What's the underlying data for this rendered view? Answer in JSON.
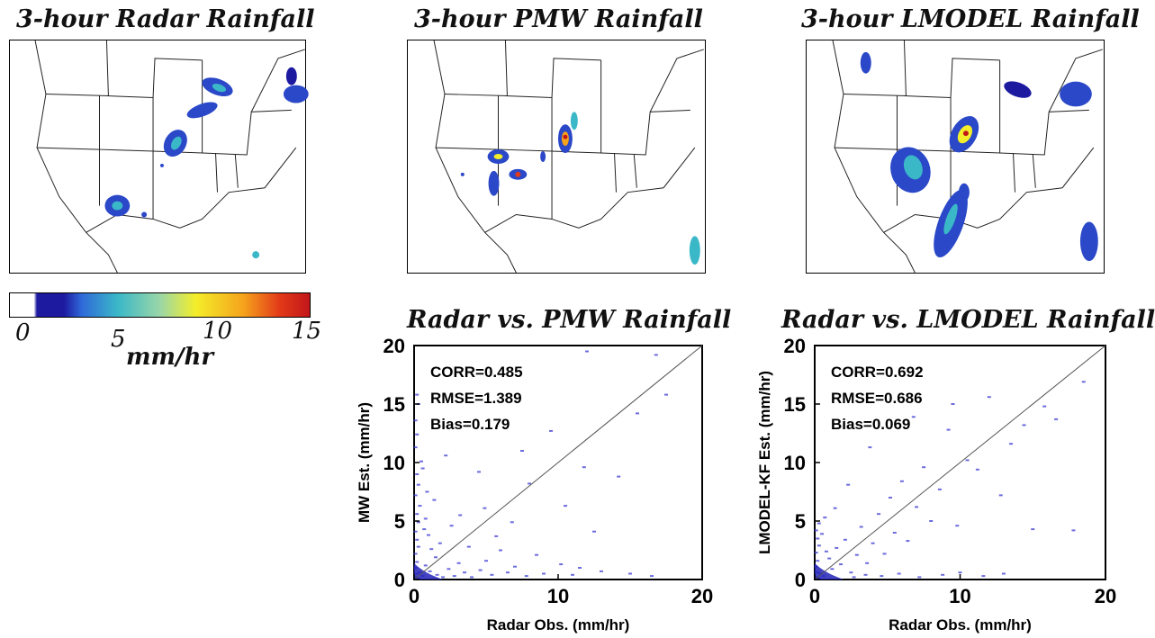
{
  "titles": {
    "radar_map": "3-hour Radar Rainfall",
    "pmw_map": "3-hour PMW Rainfall",
    "lmodel_map": "3-hour LMODEL Rainfall"
  },
  "colorbar": {
    "ticks": [
      "0",
      "5",
      "10",
      "15"
    ],
    "unit": "mm/hr",
    "colors": [
      "#ffffff",
      "#1d1aa0",
      "#2f6ad8",
      "#3bb8c8",
      "#9ad6a8",
      "#f4ee2a",
      "#f5a21c",
      "#e23a18",
      "#c2161a"
    ]
  },
  "chart_data": [
    {
      "type": "scatter",
      "title": "Radar vs. PMW Rainfall",
      "xlabel": "Radar Obs. (mm/hr)",
      "ylabel": "MW Est. (mm/hr)",
      "xlim": [
        0,
        20
      ],
      "ylim": [
        0,
        20
      ],
      "xticks": [
        "0",
        "10",
        "20"
      ],
      "yticks": [
        "0",
        "5",
        "10",
        "15",
        "20"
      ],
      "stats": [
        "CORR=0.485",
        "RMSE=1.389",
        "Bias=0.179"
      ],
      "reference_line": "1:1",
      "point_color": "#3b3bd0",
      "points": [
        [
          0.1,
          0.2
        ],
        [
          0.2,
          0.5
        ],
        [
          0.3,
          0.1
        ],
        [
          0.1,
          1.0
        ],
        [
          0.4,
          0.6
        ],
        [
          0.2,
          1.5
        ],
        [
          0.6,
          0.3
        ],
        [
          0.1,
          2.2
        ],
        [
          0.3,
          2.8
        ],
        [
          0.2,
          3.4
        ],
        [
          0.1,
          4.1
        ],
        [
          0.3,
          4.9
        ],
        [
          0.2,
          5.6
        ],
        [
          0.4,
          6.3
        ],
        [
          0.1,
          7.2
        ],
        [
          0.3,
          8.1
        ],
        [
          0.2,
          9.0
        ],
        [
          0.5,
          10.1
        ],
        [
          0.1,
          11.3
        ],
        [
          0.2,
          12.4
        ],
        [
          0.1,
          13.6
        ],
        [
          0.3,
          15.0
        ],
        [
          0.2,
          15.8
        ],
        [
          0.9,
          7.5
        ],
        [
          0.8,
          5.2
        ],
        [
          0.7,
          4.3
        ],
        [
          1.0,
          3.8
        ],
        [
          1.2,
          2.6
        ],
        [
          1.5,
          1.9
        ],
        [
          0.8,
          1.2
        ],
        [
          1.1,
          0.7
        ],
        [
          1.6,
          0.4
        ],
        [
          2.0,
          0.2
        ],
        [
          2.4,
          0.9
        ],
        [
          2.8,
          0.3
        ],
        [
          3.1,
          1.4
        ],
        [
          3.5,
          0.6
        ],
        [
          4.0,
          0.2
        ],
        [
          4.6,
          0.8
        ],
        [
          5.0,
          1.6
        ],
        [
          5.4,
          0.4
        ],
        [
          6.0,
          2.5
        ],
        [
          6.5,
          0.6
        ],
        [
          7.0,
          1.1
        ],
        [
          7.8,
          0.3
        ],
        [
          8.5,
          2.1
        ],
        [
          9.0,
          0.5
        ],
        [
          10.2,
          1.3
        ],
        [
          11.0,
          0.4
        ],
        [
          11.5,
          1.0
        ],
        [
          13.0,
          0.7
        ],
        [
          15.0,
          0.5
        ],
        [
          16.5,
          0.3
        ],
        [
          1.8,
          3.1
        ],
        [
          2.6,
          4.6
        ],
        [
          3.2,
          5.5
        ],
        [
          4.5,
          9.2
        ],
        [
          4.9,
          6.1
        ],
        [
          5.7,
          3.7
        ],
        [
          7.5,
          11.0
        ],
        [
          8.0,
          8.2
        ],
        [
          9.5,
          12.7
        ],
        [
          11.8,
          9.6
        ],
        [
          12.5,
          4.1
        ],
        [
          14.2,
          8.8
        ],
        [
          15.5,
          14.2
        ],
        [
          16.8,
          19.2
        ],
        [
          12.0,
          19.5
        ],
        [
          17.5,
          15.8
        ],
        [
          2.2,
          10.6
        ],
        [
          1.4,
          6.8
        ],
        [
          0.6,
          9.5
        ],
        [
          3.8,
          2.8
        ],
        [
          6.8,
          4.9
        ],
        [
          10.5,
          6.3
        ]
      ]
    },
    {
      "type": "scatter",
      "title": "Radar vs. LMODEL Rainfall",
      "xlabel": "Radar Obs. (mm/hr)",
      "ylabel": "LMODEL-KF Est. (mm/hr)",
      "xlim": [
        0,
        20
      ],
      "ylim": [
        0,
        20
      ],
      "xticks": [
        "0",
        "10",
        "20"
      ],
      "yticks": [
        "0",
        "5",
        "10",
        "15",
        "20"
      ],
      "stats": [
        "CORR=0.692",
        "RMSE=0.686",
        "Bias=0.069"
      ],
      "reference_line": "1:1",
      "point_color": "#3b3bd0",
      "points": [
        [
          0.1,
          0.2
        ],
        [
          0.2,
          0.6
        ],
        [
          0.3,
          0.1
        ],
        [
          0.1,
          1.1
        ],
        [
          0.4,
          0.5
        ],
        [
          0.2,
          1.6
        ],
        [
          0.6,
          0.3
        ],
        [
          0.1,
          2.3
        ],
        [
          0.3,
          2.9
        ],
        [
          0.2,
          3.5
        ],
        [
          0.1,
          4.2
        ],
        [
          0.3,
          4.8
        ],
        [
          0.5,
          3.9
        ],
        [
          0.8,
          2.4
        ],
        [
          1.0,
          1.8
        ],
        [
          1.2,
          0.9
        ],
        [
          1.5,
          2.7
        ],
        [
          1.8,
          1.3
        ],
        [
          2.1,
          3.4
        ],
        [
          2.5,
          0.6
        ],
        [
          2.9,
          2.1
        ],
        [
          3.2,
          4.5
        ],
        [
          3.6,
          1.4
        ],
        [
          4.0,
          3.1
        ],
        [
          4.4,
          5.6
        ],
        [
          4.8,
          2.2
        ],
        [
          5.2,
          7.0
        ],
        [
          5.5,
          4.0
        ],
        [
          6.0,
          8.4
        ],
        [
          6.4,
          3.3
        ],
        [
          7.0,
          6.2
        ],
        [
          7.5,
          9.6
        ],
        [
          8.0,
          5.0
        ],
        [
          8.6,
          7.7
        ],
        [
          9.2,
          12.8
        ],
        [
          9.8,
          4.6
        ],
        [
          10.5,
          10.2
        ],
        [
          11.2,
          9.4
        ],
        [
          12.0,
          15.6
        ],
        [
          12.8,
          7.2
        ],
        [
          13.5,
          11.6
        ],
        [
          14.4,
          13.2
        ],
        [
          15.0,
          4.3
        ],
        [
          15.8,
          14.8
        ],
        [
          16.6,
          13.7
        ],
        [
          17.8,
          4.2
        ],
        [
          18.5,
          16.9
        ],
        [
          2.7,
          0.2
        ],
        [
          3.5,
          0.4
        ],
        [
          4.6,
          0.3
        ],
        [
          5.8,
          0.5
        ],
        [
          7.2,
          0.2
        ],
        [
          8.8,
          0.4
        ],
        [
          10.0,
          0.6
        ],
        [
          11.6,
          0.3
        ],
        [
          13.0,
          0.5
        ],
        [
          1.4,
          6.1
        ],
        [
          0.7,
          5.3
        ],
        [
          2.3,
          8.1
        ],
        [
          3.8,
          11.3
        ],
        [
          6.8,
          13.9
        ],
        [
          9.5,
          15.0
        ]
      ]
    }
  ]
}
